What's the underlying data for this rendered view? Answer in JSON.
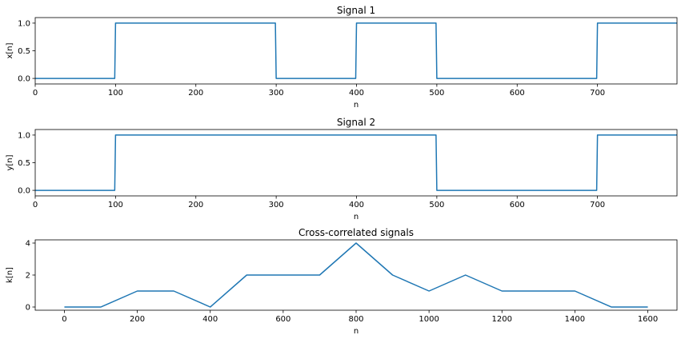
{
  "chart_data": [
    {
      "type": "line",
      "title": "Signal 1",
      "xlabel": "n",
      "ylabel": "x[n]",
      "xlim": [
        0,
        799
      ],
      "ylim": [
        -0.1,
        1.1
      ],
      "xticks": [
        0,
        100,
        200,
        300,
        400,
        500,
        600,
        700
      ],
      "yticks": [
        0.0,
        0.5,
        1.0
      ],
      "ytick_labels": [
        "0.0",
        "0.5",
        "1.0"
      ],
      "series": [
        {
          "x": [
            0,
            99,
            100,
            299,
            300,
            399,
            400,
            499,
            500,
            699,
            700,
            799
          ],
          "y": [
            0,
            0,
            1,
            1,
            0,
            0,
            1,
            1,
            0,
            0,
            1,
            1
          ]
        }
      ],
      "grid": false
    },
    {
      "type": "line",
      "title": "Signal 2",
      "xlabel": "n",
      "ylabel": "y[n]",
      "xlim": [
        0,
        799
      ],
      "ylim": [
        -0.1,
        1.1
      ],
      "xticks": [
        0,
        100,
        200,
        300,
        400,
        500,
        600,
        700
      ],
      "yticks": [
        0.0,
        0.5,
        1.0
      ],
      "ytick_labels": [
        "0.0",
        "0.5",
        "1.0"
      ],
      "series": [
        {
          "x": [
            0,
            99,
            100,
            499,
            500,
            699,
            700,
            799
          ],
          "y": [
            0,
            0,
            1,
            1,
            0,
            0,
            1,
            1
          ]
        }
      ],
      "grid": false
    },
    {
      "type": "line",
      "title": "Cross-correlated signals",
      "xlabel": "n",
      "ylabel": "k[n]",
      "xlim": [
        -80,
        1680
      ],
      "ylim": [
        -0.2,
        4.2
      ],
      "xticks": [
        0,
        200,
        400,
        600,
        800,
        1000,
        1200,
        1400,
        1600
      ],
      "yticks": [
        0,
        2,
        4
      ],
      "ytick_labels": [
        "0",
        "2",
        "4"
      ],
      "series": [
        {
          "x": [
            0,
            100,
            200,
            300,
            400,
            500,
            600,
            700,
            800,
            900,
            1000,
            1100,
            1200,
            1300,
            1400,
            1500,
            1600
          ],
          "y": [
            0,
            0,
            1,
            1,
            0,
            2,
            2,
            2,
            4,
            2,
            1,
            2,
            1,
            1,
            1,
            0,
            0
          ]
        }
      ],
      "grid": false
    }
  ],
  "colors": {
    "line": "#1f77b4"
  }
}
